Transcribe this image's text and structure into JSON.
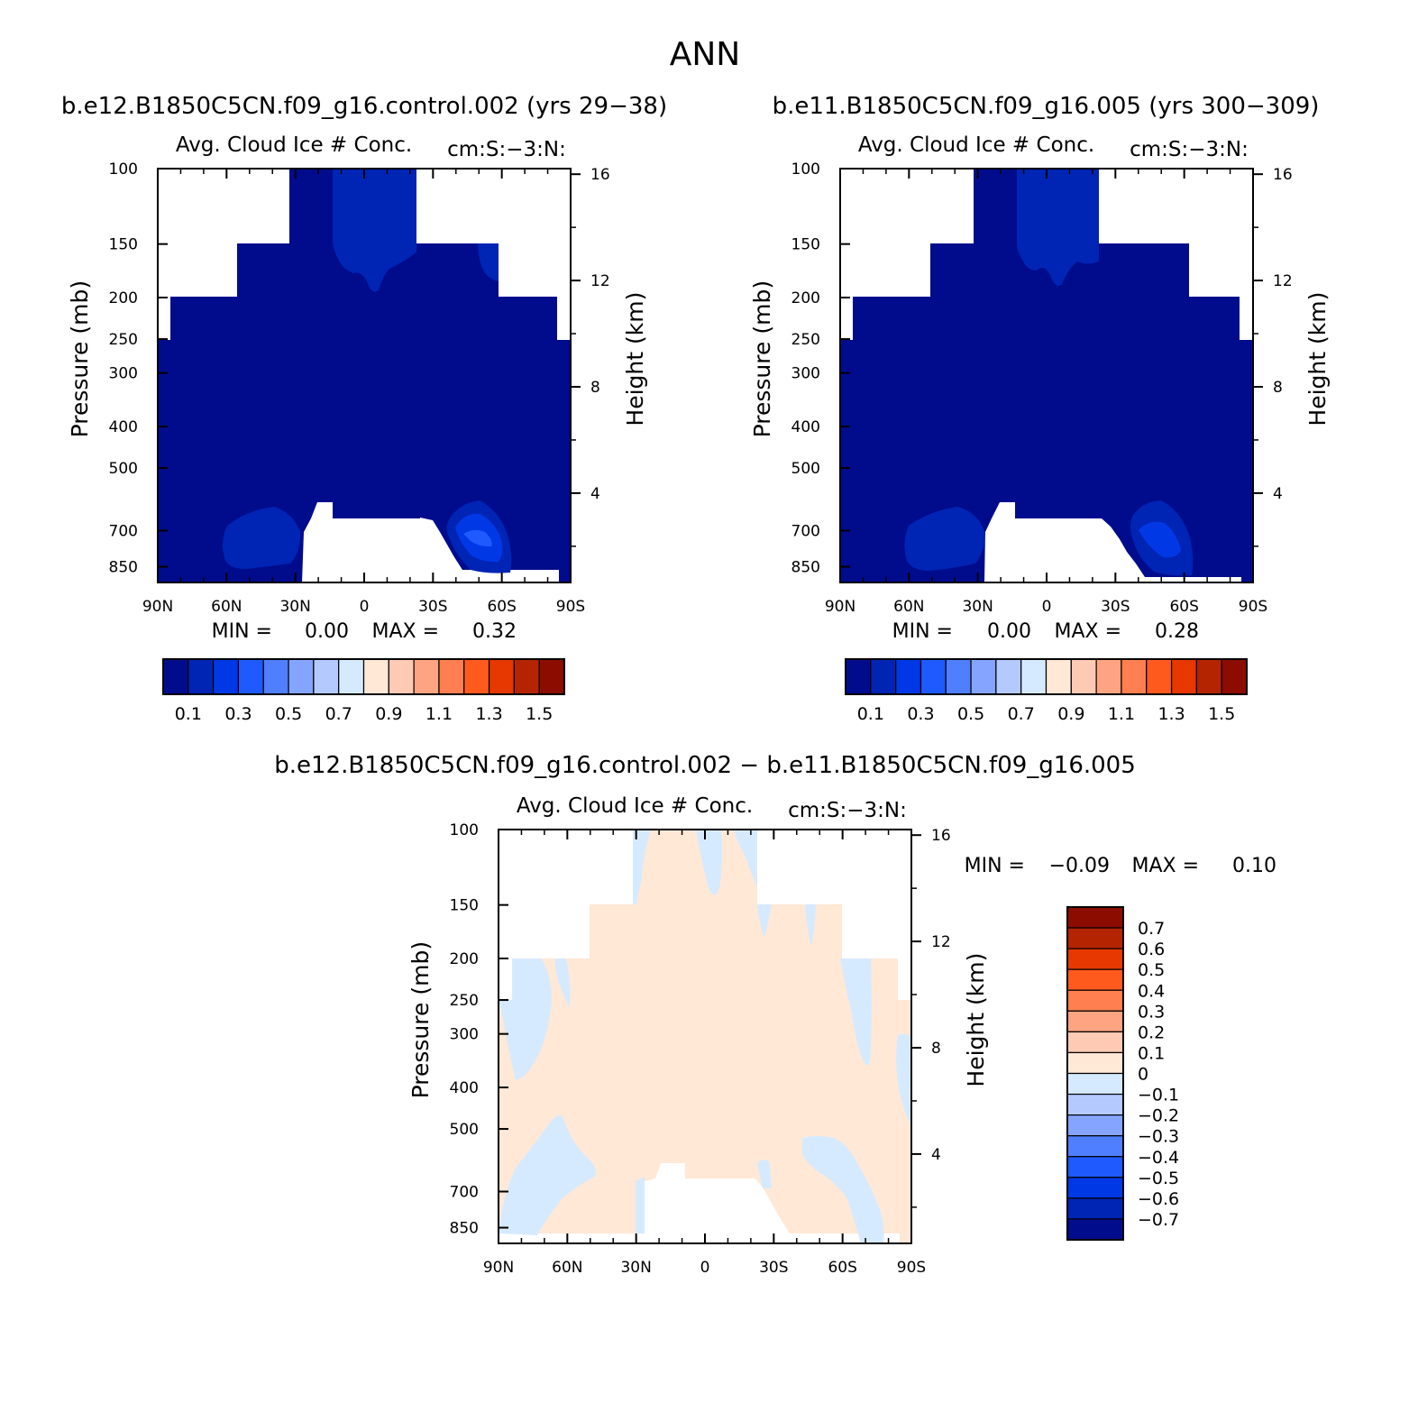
{
  "title": "ANN",
  "chart_data": [
    {
      "type": "heatmap",
      "case_title": "b.e12.B1850C5CN.f09_g16.control.002 (yrs 29−38)",
      "title": "Avg. Cloud Ice # Conc.",
      "units": "cm:S:−3:N:",
      "xlabel": "",
      "ylabel": "Pressure (mb)",
      "ylabel_right": "Height (km)",
      "x_ticks": [
        "90N",
        "60N",
        "30N",
        "0",
        "30S",
        "60S",
        "90S"
      ],
      "y_ticks": [
        "100",
        "150",
        "200",
        "250",
        "300",
        "400",
        "500",
        "700",
        "850"
      ],
      "y_ticks_right": [
        "16",
        "12",
        "8",
        "4"
      ],
      "min_label": "MIN =",
      "min_value": "0.00",
      "max_label": "MAX =",
      "max_value": "0.32",
      "colorbar_labels": [
        "0.1",
        "0.3",
        "0.5",
        "0.7",
        "0.9",
        "1.1",
        "1.3",
        "1.5"
      ],
      "colorbar_colors": [
        "#000c8c",
        "#0024b4",
        "#0038e6",
        "#1e5aff",
        "#4f7fff",
        "#84a4ff",
        "#b4caff",
        "#d6eaff",
        "#ffe8d6",
        "#ffcab4",
        "#ffa482",
        "#ff7f50",
        "#ff5a1e",
        "#e63800",
        "#b42400",
        "#8c0c00"
      ],
      "regions": [
        {
          "name": "upper-core-0.1",
          "level": 0.1,
          "color": "#0024b4",
          "lat_range": [
            "10N",
            "30S"
          ],
          "p_range": [
            100,
            200
          ]
        },
        {
          "name": "nh-low-blob-0.1",
          "level": 0.1,
          "color": "#0024b4",
          "lat_range": [
            "70N",
            "35N"
          ],
          "p_range": [
            630,
            870
          ]
        },
        {
          "name": "sh-low-blob-0.2",
          "level": 0.2,
          "color": "#0038e6",
          "lat_range": [
            "40S",
            "65S"
          ],
          "p_range": [
            620,
            880
          ]
        },
        {
          "name": "sh-low-core-0.3",
          "level": 0.3,
          "color": "#1e5aff",
          "lat_range": [
            "45S",
            "55S"
          ],
          "p_range": [
            700,
            780
          ]
        }
      ]
    },
    {
      "type": "heatmap",
      "case_title": "b.e11.B1850C5CN.f09_g16.005 (yrs 300−309)",
      "title": "Avg. Cloud Ice # Conc.",
      "units": "cm:S:−3:N:",
      "xlabel": "",
      "ylabel": "Pressure (mb)",
      "ylabel_right": "Height (km)",
      "x_ticks": [
        "90N",
        "60N",
        "30N",
        "0",
        "30S",
        "60S",
        "90S"
      ],
      "y_ticks": [
        "100",
        "150",
        "200",
        "250",
        "300",
        "400",
        "500",
        "700",
        "850"
      ],
      "y_ticks_right": [
        "16",
        "12",
        "8",
        "4"
      ],
      "min_label": "MIN =",
      "min_value": "0.00",
      "max_label": "MAX =",
      "max_value": "0.28",
      "colorbar_labels": [
        "0.1",
        "0.3",
        "0.5",
        "0.7",
        "0.9",
        "1.1",
        "1.3",
        "1.5"
      ],
      "colorbar_colors": [
        "#000c8c",
        "#0024b4",
        "#0038e6",
        "#1e5aff",
        "#4f7fff",
        "#84a4ff",
        "#b4caff",
        "#d6eaff",
        "#ffe8d6",
        "#ffcab4",
        "#ffa482",
        "#ff7f50",
        "#ff5a1e",
        "#e63800",
        "#b42400",
        "#8c0c00"
      ],
      "regions": [
        {
          "name": "upper-core-0.1",
          "level": 0.1,
          "color": "#0024b4",
          "lat_range": [
            "10N",
            "30S"
          ],
          "p_range": [
            100,
            200
          ]
        },
        {
          "name": "nh-low-blob-0.1",
          "level": 0.1,
          "color": "#0024b4",
          "lat_range": [
            "70N",
            "35N"
          ],
          "p_range": [
            630,
            870
          ]
        },
        {
          "name": "sh-low-blob-0.2",
          "level": 0.2,
          "color": "#0038e6",
          "lat_range": [
            "45S",
            "62S"
          ],
          "p_range": [
            640,
            860
          ]
        }
      ]
    },
    {
      "type": "heatmap",
      "case_title": "b.e12.B1850C5CN.f09_g16.control.002 − b.e11.B1850C5CN.f09_g16.005",
      "title": "Avg. Cloud Ice # Conc.",
      "units": "cm:S:−3:N:",
      "xlabel": "",
      "ylabel": "Pressure (mb)",
      "ylabel_right": "Height (km)",
      "x_ticks": [
        "90N",
        "60N",
        "30N",
        "0",
        "30S",
        "60S",
        "90S"
      ],
      "y_ticks": [
        "100",
        "150",
        "200",
        "250",
        "300",
        "400",
        "500",
        "700",
        "850"
      ],
      "y_ticks_right": [
        "16",
        "12",
        "8",
        "4"
      ],
      "min_label": "MIN =",
      "min_value": "−0.09",
      "max_label": "MAX =",
      "max_value": "0.10",
      "colorbar_labels": [
        "0.7",
        "0.6",
        "0.5",
        "0.4",
        "0.3",
        "0.2",
        "0.1",
        "0",
        "−0.1",
        "−0.2",
        "−0.3",
        "−0.4",
        "−0.5",
        "−0.6",
        "−0.7"
      ],
      "colorbar_colors": [
        "#8c0c00",
        "#b42400",
        "#e63800",
        "#ff5a1e",
        "#ff7f50",
        "#ffa482",
        "#ffcab4",
        "#ffe8d6",
        "#d6eaff",
        "#b4caff",
        "#84a4ff",
        "#4f7fff",
        "#1e5aff",
        "#0038e6",
        "#0024b4",
        "#000c8c"
      ],
      "regions": [
        {
          "name": "dominant-positive",
          "level_range": [
            0,
            0.1
          ],
          "color": "#ffe8d6"
        },
        {
          "name": "negative-patches",
          "level_range": [
            -0.1,
            0
          ],
          "color": "#d6eaff"
        }
      ]
    }
  ]
}
